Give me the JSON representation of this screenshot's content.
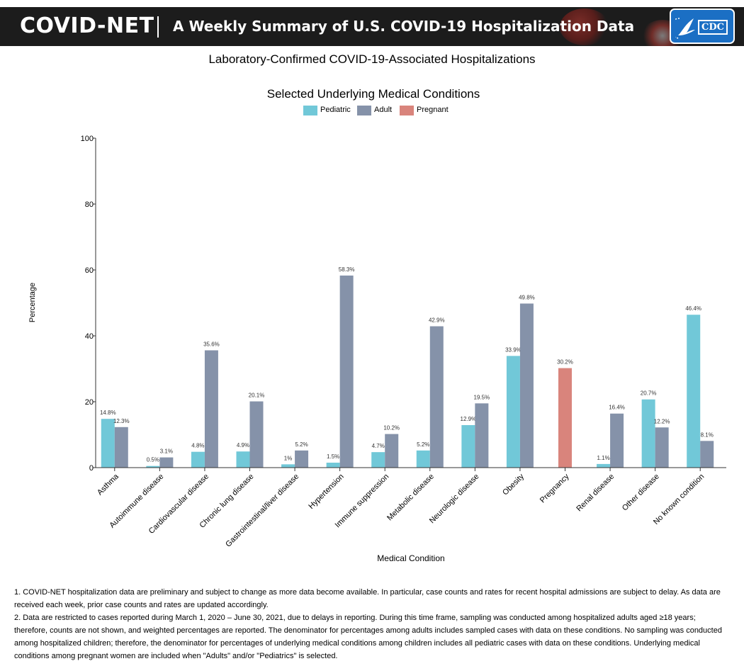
{
  "header": {
    "brand": "COVID-NET",
    "subtitle": "A Weekly Summary of U.S. COVID-19 Hospitalization Data",
    "logo_text": "CDC",
    "background_color": "#1c1c1c"
  },
  "page_title": "Laboratory-Confirmed COVID-19-Associated Hospitalizations",
  "chart_data": {
    "type": "bar",
    "title": "Selected Underlying Medical Conditions",
    "xlabel": "Medical Condition",
    "ylabel": "Percentage",
    "ylim": [
      0,
      100
    ],
    "yticks": [
      0,
      20,
      40,
      60,
      80,
      100
    ],
    "legend_position": "top-center",
    "grid": false,
    "categories": [
      "Asthma",
      "Autoimmune disease",
      "Cardiovascular disease",
      "Chronic lung disease",
      "Gastrointestinal/liver disease",
      "Hypertension",
      "Immune suppression",
      "Metabolic disease",
      "Neurologic disease",
      "Obesity",
      "Pregnancy",
      "Renal disease",
      "Other disease",
      "No known condition"
    ],
    "series": [
      {
        "name": "Pediatric",
        "color": "#71c8d8",
        "values": [
          14.8,
          0.5,
          4.8,
          4.9,
          1,
          1.5,
          4.7,
          5.2,
          12.9,
          33.9,
          null,
          1.1,
          20.7,
          46.4
        ],
        "labels": [
          "14.8%",
          "0.5%",
          "4.8%",
          "4.9%",
          "1%",
          "1.5%",
          "4.7%",
          "5.2%",
          "12.9%",
          "33.9%",
          null,
          "1.1%",
          "20.7%",
          "46.4%"
        ]
      },
      {
        "name": "Adult",
        "color": "#8592a9",
        "values": [
          12.3,
          3.1,
          35.6,
          20.1,
          5.2,
          58.3,
          10.2,
          42.9,
          19.5,
          49.8,
          null,
          16.4,
          12.2,
          8.1
        ],
        "labels": [
          "12.3%",
          "3.1%",
          "35.6%",
          "20.1%",
          "5.2%",
          "58.3%",
          "10.2%",
          "42.9%",
          "19.5%",
          "49.8%",
          null,
          "16.4%",
          "12.2%",
          "8.1%"
        ]
      },
      {
        "name": "Pregnant",
        "color": "#d9847c",
        "values": [
          null,
          null,
          null,
          null,
          null,
          null,
          null,
          null,
          null,
          null,
          30.2,
          null,
          null,
          null
        ],
        "labels": [
          null,
          null,
          null,
          null,
          null,
          null,
          null,
          null,
          null,
          null,
          "30.2%",
          null,
          null,
          null
        ]
      }
    ]
  },
  "footnotes": [
    "1. COVID-NET hospitalization data are preliminary and subject to change as more data become available. In particular, case counts and rates for recent hospital admissions are subject to delay. As data are received each week, prior case counts and rates are updated accordingly.",
    "2. Data are restricted to cases reported during March 1, 2020 – June 30, 2021, due to delays in reporting. During this time frame, sampling was conducted among hospitalized adults aged ≥18 years; therefore, counts are not shown, and weighted percentages are reported. The denominator for percentages among adults includes sampled cases with data on these conditions. No sampling was conducted among hospitalized children; therefore, the denominator for percentages of underlying medical conditions among children includes all pediatric cases with data on these conditions. Underlying medical conditions among pregnant women are included when \"Adults\" and/or \"Pediatrics\" is selected."
  ]
}
